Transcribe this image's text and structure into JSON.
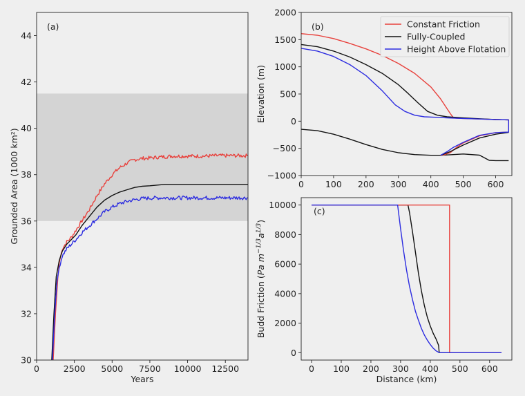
{
  "chart_data": [
    {
      "type": "line",
      "panel_label": "(a)",
      "xlabel": "Years",
      "ylabel": "Grounded Area (1000 km²)",
      "xlim": [
        0,
        14000
      ],
      "ylim": [
        30,
        45
      ],
      "xticks": [
        0,
        2500,
        5000,
        7500,
        10000,
        12500
      ],
      "yticks": [
        30,
        32,
        34,
        36,
        38,
        40,
        42,
        44
      ],
      "shaded_band": {
        "y0": 36.0,
        "y1": 41.5,
        "color": "#d4d4d4"
      },
      "grid": false,
      "series": [
        {
          "color": "#e8413c",
          "noisy": true,
          "x": [
            1100,
            1250,
            1400,
            1500,
            1700,
            2000,
            2300,
            2600,
            3000,
            3500,
            4000,
            4500,
            5000,
            5500,
            6000,
            6500,
            7000,
            7500,
            8000,
            9000,
            10000,
            11000,
            12000,
            13000,
            14000
          ],
          "y": [
            30.0,
            32.0,
            33.5,
            34.2,
            34.8,
            35.1,
            35.3,
            35.6,
            36.0,
            36.5,
            37.1,
            37.6,
            38.0,
            38.3,
            38.5,
            38.65,
            38.7,
            38.72,
            38.75,
            38.8,
            38.8,
            38.8,
            38.82,
            38.82,
            38.82
          ]
        },
        {
          "color": "#111111",
          "noisy": false,
          "x": [
            1000,
            1150,
            1300,
            1500,
            1700,
            2000,
            2300,
            2600,
            3000,
            3500,
            4000,
            4500,
            5000,
            5500,
            6000,
            6500,
            7000,
            7500,
            8000,
            8500,
            9000,
            10000,
            11000,
            12000,
            13000,
            14000
          ],
          "y": [
            30.0,
            32.0,
            33.6,
            34.3,
            34.7,
            35.0,
            35.2,
            35.4,
            35.8,
            36.2,
            36.6,
            36.9,
            37.1,
            37.25,
            37.35,
            37.45,
            37.5,
            37.52,
            37.55,
            37.58,
            37.58,
            37.58,
            37.58,
            37.58,
            37.58,
            37.58
          ]
        },
        {
          "color": "#2b2be0",
          "noisy": true,
          "x": [
            1050,
            1200,
            1350,
            1500,
            1700,
            2000,
            2300,
            2600,
            3000,
            3500,
            4000,
            4500,
            5000,
            5500,
            6000,
            6500,
            7000,
            7500,
            8000,
            9000,
            10000,
            11000,
            12000,
            13000,
            14000
          ],
          "y": [
            30.0,
            32.0,
            33.4,
            34.0,
            34.5,
            34.8,
            35.0,
            35.2,
            35.5,
            35.8,
            36.1,
            36.4,
            36.6,
            36.75,
            36.85,
            36.92,
            36.97,
            36.99,
            37.0,
            37.0,
            37.0,
            37.0,
            37.0,
            37.0,
            37.0
          ]
        }
      ]
    },
    {
      "type": "line",
      "panel_label": "(b)",
      "xlabel": "",
      "ylabel": "Elevation (m)",
      "xlim": [
        0,
        650
      ],
      "ylim": [
        -1000,
        2000
      ],
      "xticks": [
        0,
        100,
        200,
        300,
        400,
        500,
        600
      ],
      "yticks": [
        -1000,
        -500,
        0,
        500,
        1000,
        1500,
        2000
      ],
      "legend_position": "top-right",
      "legend": [
        {
          "label": "Constant Friction",
          "color": "#e8413c"
        },
        {
          "label": "Fully-Coupled",
          "color": "#111111"
        },
        {
          "label": "Height Above Flotation",
          "color": "#2b2be0"
        }
      ],
      "series": [
        {
          "color": "#111111",
          "x": [
            0,
            50,
            100,
            150,
            200,
            250,
            300,
            350,
            400,
            430,
            460,
            500,
            550,
            580,
            600,
            640
          ],
          "y": [
            -150,
            -175,
            -240,
            -330,
            -430,
            -520,
            -580,
            -615,
            -628,
            -628,
            -617,
            -603,
            -625,
            -720,
            -725,
            -725
          ]
        },
        {
          "color": "#e8413c",
          "x": [
            0,
            50,
            100,
            150,
            200,
            250,
            300,
            350,
            400,
            430,
            460,
            470
          ],
          "y": [
            1610,
            1580,
            1520,
            1430,
            1330,
            1210,
            1060,
            880,
            630,
            410,
            140,
            60
          ]
        },
        {
          "color": "#e8413c",
          "x": [
            470,
            480,
            500,
            550,
            600,
            640,
            640,
            600,
            550,
            500,
            480,
            470,
            460,
            440,
            430
          ],
          "y": [
            60,
            55,
            50,
            40,
            30,
            25,
            -200,
            -210,
            -270,
            -400,
            -480,
            -530,
            -580,
            -620,
            -628
          ]
        },
        {
          "color": "#111111",
          "x": [
            0,
            50,
            100,
            150,
            200,
            250,
            300,
            330,
            360,
            390,
            420,
            450,
            500,
            550,
            600,
            640
          ],
          "y": [
            1410,
            1370,
            1290,
            1180,
            1040,
            880,
            670,
            510,
            340,
            180,
            110,
            80,
            60,
            45,
            30,
            25
          ]
        },
        {
          "color": "#111111",
          "x": [
            430,
            460,
            500,
            550,
            600,
            640
          ],
          "y": [
            -628,
            -560,
            -440,
            -310,
            -240,
            -205
          ]
        },
        {
          "color": "#2b2be0",
          "x": [
            0,
            50,
            100,
            150,
            200,
            250,
            290,
            320,
            350,
            380,
            420,
            450,
            500,
            550,
            600,
            640
          ],
          "y": [
            1340,
            1290,
            1190,
            1040,
            840,
            560,
            300,
            180,
            110,
            80,
            70,
            62,
            50,
            40,
            30,
            25
          ]
        },
        {
          "color": "#2b2be0",
          "x": [
            640,
            640,
            600,
            550,
            500,
            470,
            450,
            430
          ],
          "y": [
            25,
            -200,
            -210,
            -260,
            -390,
            -480,
            -560,
            -628
          ]
        }
      ]
    },
    {
      "type": "line",
      "panel_label": "(c)",
      "xlabel": "Distance (km)",
      "ylabel": "Budd Friction (Pa m^-1/3 a^1/3)",
      "xlim": [
        -35,
        675
      ],
      "ylim": [
        -500,
        10500
      ],
      "xticks": [
        0,
        100,
        200,
        300,
        400,
        500,
        600
      ],
      "yticks": [
        0,
        2000,
        4000,
        6000,
        8000,
        10000
      ],
      "series": [
        {
          "color": "#111111",
          "x": [
            0,
            320,
            325,
            330,
            340,
            350,
            360,
            370,
            380,
            390,
            400,
            410,
            420,
            428,
            430,
            440,
            640
          ],
          "y": [
            10000,
            10000,
            10000,
            9500,
            8200,
            6800,
            5400,
            4200,
            3200,
            2400,
            1800,
            1300,
            900,
            500,
            0,
            0,
            0
          ]
        },
        {
          "color": "#e8413c",
          "x": [
            0,
            465,
            465,
            470,
            640
          ],
          "y": [
            10000,
            10000,
            0,
            0,
            0
          ]
        },
        {
          "color": "#2b2be0",
          "x": [
            0,
            290,
            300,
            310,
            320,
            330,
            340,
            350,
            360,
            370,
            380,
            390,
            400,
            410,
            420,
            430,
            440,
            640
          ],
          "y": [
            10000,
            10000,
            8400,
            6900,
            5600,
            4500,
            3600,
            2800,
            2200,
            1650,
            1200,
            850,
            550,
            300,
            120,
            0,
            0,
            0
          ]
        }
      ]
    }
  ]
}
